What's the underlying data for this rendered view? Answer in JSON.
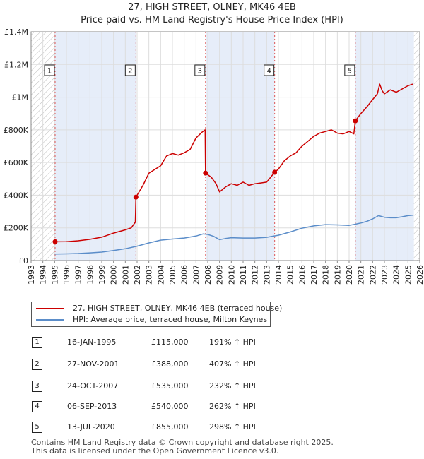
{
  "chart_data": {
    "type": "line",
    "title": "27, HIGH STREET, OLNEY, MK46 4EB",
    "subtitle": "Price paid vs. HM Land Registry's House Price Index (HPI)",
    "xlim": [
      1993,
      2026
    ],
    "ylim": [
      0,
      1400000
    ],
    "x_ticks": [
      "1993",
      "1994",
      "1995",
      "1996",
      "1997",
      "1998",
      "1999",
      "2000",
      "2001",
      "2002",
      "2003",
      "2004",
      "2005",
      "2006",
      "2007",
      "2008",
      "2009",
      "2010",
      "2011",
      "2012",
      "2013",
      "2014",
      "2015",
      "2016",
      "2017",
      "2018",
      "2019",
      "2020",
      "2021",
      "2022",
      "2023",
      "2024",
      "2025",
      "2026"
    ],
    "y_ticks": [
      {
        "value": 0,
        "label": "£0"
      },
      {
        "value": 200000,
        "label": "£200K"
      },
      {
        "value": 400000,
        "label": "£400K"
      },
      {
        "value": 600000,
        "label": "£600K"
      },
      {
        "value": 800000,
        "label": "£800K"
      },
      {
        "value": 1000000,
        "label": "£1M"
      },
      {
        "value": 1200000,
        "label": "£1.2M"
      },
      {
        "value": 1400000,
        "label": "£1.4M"
      }
    ],
    "hatch_before": 1995.0,
    "hatch_after": 2025.5,
    "series": [
      {
        "name": "27, HIGH STREET, OLNEY, MK46 4EB (terraced house)",
        "color": "#cc0000",
        "points": [
          [
            1995.04,
            115000
          ],
          [
            1996.0,
            116000
          ],
          [
            1997.0,
            121000
          ],
          [
            1998.0,
            130000
          ],
          [
            1999.0,
            143000
          ],
          [
            2000.0,
            168000
          ],
          [
            2001.0,
            188000
          ],
          [
            2001.5,
            200000
          ],
          [
            2001.85,
            235000
          ],
          [
            2001.9,
            388000
          ],
          [
            2002.5,
            460000
          ],
          [
            2003.0,
            535000
          ],
          [
            2004.0,
            580000
          ],
          [
            2004.5,
            640000
          ],
          [
            2005.0,
            655000
          ],
          [
            2005.5,
            645000
          ],
          [
            2006.0,
            660000
          ],
          [
            2006.5,
            680000
          ],
          [
            2007.0,
            750000
          ],
          [
            2007.5,
            785000
          ],
          [
            2007.78,
            800000
          ],
          [
            2007.81,
            535000
          ],
          [
            2008.3,
            510000
          ],
          [
            2008.7,
            470000
          ],
          [
            2009.0,
            420000
          ],
          [
            2009.5,
            450000
          ],
          [
            2010.0,
            470000
          ],
          [
            2010.5,
            460000
          ],
          [
            2011.0,
            480000
          ],
          [
            2011.5,
            460000
          ],
          [
            2012.0,
            470000
          ],
          [
            2012.5,
            475000
          ],
          [
            2013.0,
            480000
          ],
          [
            2013.68,
            540000
          ],
          [
            2014.0,
            560000
          ],
          [
            2014.5,
            610000
          ],
          [
            2015.0,
            640000
          ],
          [
            2015.5,
            660000
          ],
          [
            2016.0,
            700000
          ],
          [
            2016.5,
            730000
          ],
          [
            2017.0,
            760000
          ],
          [
            2017.5,
            780000
          ],
          [
            2018.0,
            790000
          ],
          [
            2018.5,
            800000
          ],
          [
            2019.0,
            780000
          ],
          [
            2019.5,
            775000
          ],
          [
            2020.0,
            790000
          ],
          [
            2020.4,
            775000
          ],
          [
            2020.53,
            855000
          ],
          [
            2021.0,
            900000
          ],
          [
            2021.5,
            940000
          ],
          [
            2022.0,
            985000
          ],
          [
            2022.4,
            1020000
          ],
          [
            2022.6,
            1080000
          ],
          [
            2022.8,
            1040000
          ],
          [
            2023.0,
            1020000
          ],
          [
            2023.5,
            1045000
          ],
          [
            2024.0,
            1030000
          ],
          [
            2024.5,
            1050000
          ],
          [
            2025.0,
            1070000
          ],
          [
            2025.4,
            1080000
          ]
        ]
      },
      {
        "name": "HPI: Average price, terraced house, Milton Keynes",
        "color": "#5b8dc9",
        "points": [
          [
            1995.0,
            40000
          ],
          [
            1996.0,
            41000
          ],
          [
            1997.0,
            43000
          ],
          [
            1998.0,
            47000
          ],
          [
            1999.0,
            52000
          ],
          [
            2000.0,
            62000
          ],
          [
            2001.0,
            72000
          ],
          [
            2002.0,
            88000
          ],
          [
            2003.0,
            108000
          ],
          [
            2004.0,
            125000
          ],
          [
            2005.0,
            132000
          ],
          [
            2006.0,
            138000
          ],
          [
            2007.0,
            150000
          ],
          [
            2007.6,
            163000
          ],
          [
            2008.0,
            160000
          ],
          [
            2008.5,
            148000
          ],
          [
            2009.0,
            128000
          ],
          [
            2009.5,
            135000
          ],
          [
            2010.0,
            140000
          ],
          [
            2011.0,
            138000
          ],
          [
            2012.0,
            138000
          ],
          [
            2013.0,
            142000
          ],
          [
            2014.0,
            155000
          ],
          [
            2015.0,
            175000
          ],
          [
            2016.0,
            198000
          ],
          [
            2017.0,
            212000
          ],
          [
            2018.0,
            220000
          ],
          [
            2019.0,
            218000
          ],
          [
            2020.0,
            215000
          ],
          [
            2020.5,
            222000
          ],
          [
            2021.0,
            230000
          ],
          [
            2021.5,
            240000
          ],
          [
            2022.0,
            255000
          ],
          [
            2022.5,
            275000
          ],
          [
            2023.0,
            265000
          ],
          [
            2023.5,
            262000
          ],
          [
            2024.0,
            262000
          ],
          [
            2024.5,
            268000
          ],
          [
            2025.0,
            275000
          ],
          [
            2025.4,
            278000
          ]
        ]
      }
    ],
    "sales": [
      {
        "label": "1",
        "year": 1995.04,
        "price": 115000
      },
      {
        "label": "2",
        "year": 2001.9,
        "price": 388000
      },
      {
        "label": "3",
        "year": 2007.81,
        "price": 535000
      },
      {
        "label": "4",
        "year": 2013.68,
        "price": 540000
      },
      {
        "label": "5",
        "year": 2020.53,
        "price": 855000
      }
    ]
  },
  "legend": {
    "items": [
      {
        "label": "27, HIGH STREET, OLNEY, MK46 4EB (terraced house)",
        "color": "#cc0000"
      },
      {
        "label": "HPI: Average price, terraced house, Milton Keynes",
        "color": "#5b8dc9"
      }
    ]
  },
  "transactions": [
    {
      "num": "1",
      "date": "16-JAN-1995",
      "price": "£115,000",
      "hpi": "191% ↑ HPI"
    },
    {
      "num": "2",
      "date": "27-NOV-2001",
      "price": "£388,000",
      "hpi": "407% ↑ HPI"
    },
    {
      "num": "3",
      "date": "24-OCT-2007",
      "price": "£535,000",
      "hpi": "232% ↑ HPI"
    },
    {
      "num": "4",
      "date": "06-SEP-2013",
      "price": "£540,000",
      "hpi": "262% ↑ HPI"
    },
    {
      "num": "5",
      "date": "13-JUL-2020",
      "price": "£855,000",
      "hpi": "298% ↑ HPI"
    }
  ],
  "footer": {
    "line1": "Contains HM Land Registry data © Crown copyright and database right 2025.",
    "line2": "This data is licensed under the Open Government Licence v3.0."
  }
}
